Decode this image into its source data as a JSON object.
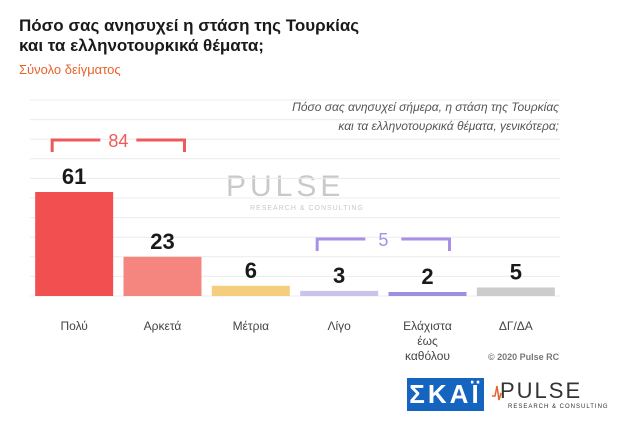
{
  "header": {
    "title_line1": "Πόσο σας ανησυχεί η στάση της Τουρκίας",
    "title_line2": "και τα ελληνοτουρκικά θέματα;",
    "subtitle": "Σύνολο δείγματος"
  },
  "question": {
    "line1": "Πόσο σας ανησυχεί σήμερα, η στάση της Τουρκίας",
    "line2": "και τα ελληνοτουρκικά θέματα, γενικότερα;"
  },
  "chart_data": {
    "type": "bar",
    "title": "Πόσο σας ανησυχεί η στάση της Τουρκίας και τα ελληνοτουρκικά θέματα;",
    "categories": [
      "Πολύ",
      "Αρκετά",
      "Μέτρια",
      "Λίγο",
      "Ελάχιστα έως καθόλου",
      "ΔΓ/ΔΑ"
    ],
    "category_lines": [
      [
        "Πολύ"
      ],
      [
        "Αρκετά"
      ],
      [
        "Μέτρια"
      ],
      [
        "Λίγο"
      ],
      [
        "Ελάχιστα",
        "έως",
        "καθόλου"
      ],
      [
        "ΔΓ/ΔΑ"
      ]
    ],
    "values": [
      61,
      23,
      6,
      3,
      2,
      5
    ],
    "colors": [
      "#f25050",
      "#f4867f",
      "#f6cd7c",
      "#c9c4ec",
      "#9c8fe0",
      "#cccccc"
    ],
    "ylim": [
      0,
      65
    ],
    "groups": [
      {
        "label": "84",
        "from": 0,
        "to": 1,
        "color": "#ee5a5a"
      },
      {
        "label": "5",
        "from": 3,
        "to": 4,
        "color": "#a890e6"
      }
    ]
  },
  "watermark": {
    "text": "PULSE",
    "sub": "RESEARCH & CONSULTING"
  },
  "footer": {
    "copyright": "© 2020 Pulse RC",
    "skai_logo": "ΣΚΑΪ",
    "pulse_logo": "PULSE",
    "pulse_sub": "RESEARCH & CONSULTING"
  }
}
